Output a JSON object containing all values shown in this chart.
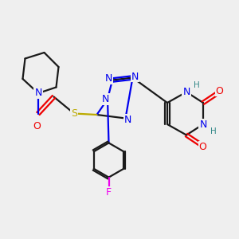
{
  "bg_color": "#efefef",
  "bond_color": "#1a1a1a",
  "N_color": "#0000ee",
  "O_color": "#ee0000",
  "S_color": "#bbaa00",
  "F_color": "#ee00ee",
  "H_color": "#338888",
  "line_width": 1.6,
  "font_size": 9.0,
  "xlim": [
    0,
    10
  ],
  "ylim": [
    0,
    10
  ]
}
